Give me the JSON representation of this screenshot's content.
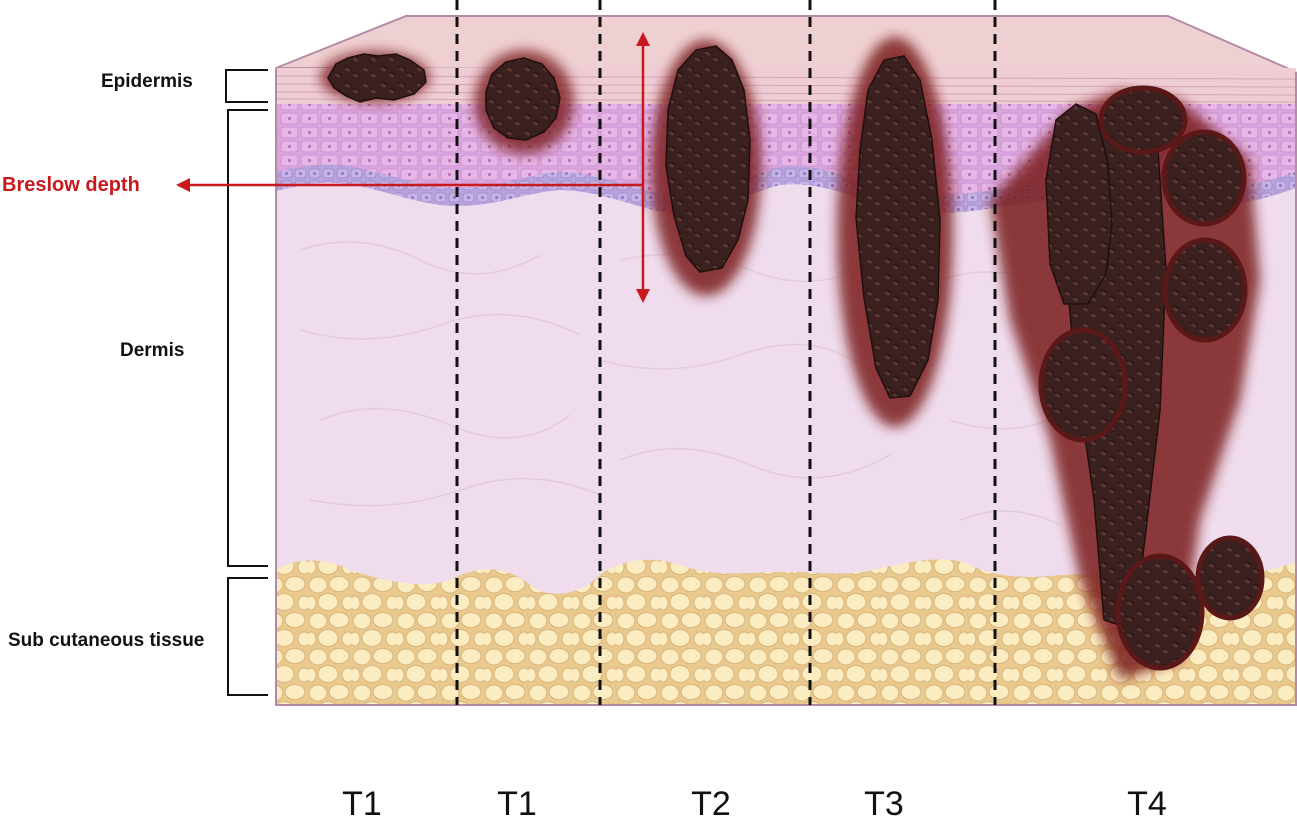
{
  "layers": {
    "epidermis": "Epidermis",
    "dermis": "Dermis",
    "subcutaneous": "Sub cutaneous tissue"
  },
  "breslow": {
    "label": "Breslow depth"
  },
  "stages": [
    "T1",
    "T1",
    "T2",
    "T3",
    "T4"
  ],
  "colors": {
    "tumor": "#3a1f1d",
    "tumor_halo": "#7a1e1e",
    "arrow": "#c8191f",
    "fat": "#f8e6b4",
    "dermis": "#efdcec",
    "epidermis": "#efcdd5",
    "basal_layer": "#b3a0dc",
    "spinous_layer": "#d9a4dc"
  }
}
